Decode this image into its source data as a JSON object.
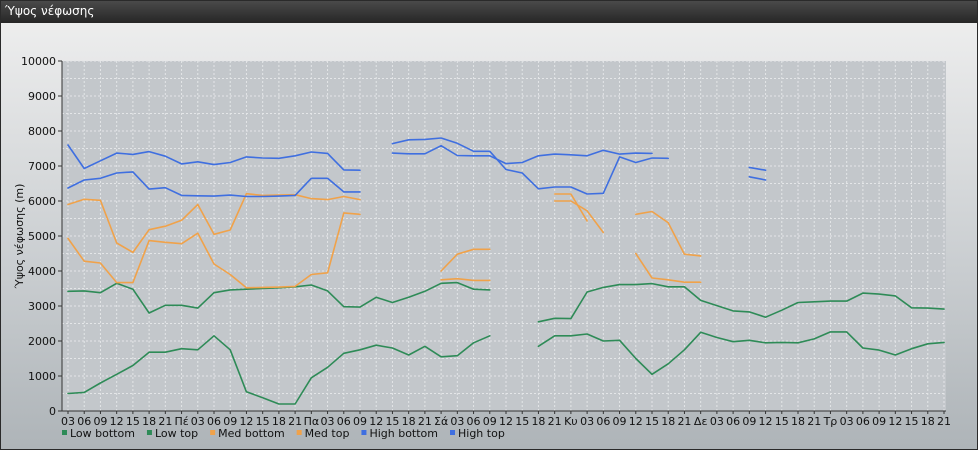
{
  "window": {
    "title": "Ύψος νέφωσης"
  },
  "colors": {
    "low_bottom": "#2e8b57",
    "low_top": "#2e8b57",
    "med_bottom": "#f0a24a",
    "med_top": "#f0a24a",
    "high_bottom": "#3f6fe0",
    "high_top": "#3f6fe0"
  },
  "chart_data": {
    "type": "line",
    "ylabel": "Ύψος νέφωσης (m)",
    "xlabel": "",
    "ylim": [
      0,
      10000
    ],
    "yticks": [
      0,
      1000,
      2000,
      3000,
      4000,
      5000,
      6000,
      7000,
      8000,
      9000,
      10000
    ],
    "grid": true,
    "legend_position": "bottom-left",
    "categories": [
      "03",
      "06",
      "09",
      "12",
      "15",
      "18",
      "21",
      "Πέ",
      "03",
      "06",
      "09",
      "12",
      "15",
      "18",
      "21",
      "Πα",
      "03",
      "06",
      "09",
      "12",
      "15",
      "18",
      "21",
      "Σά",
      "03",
      "06",
      "09",
      "12",
      "15",
      "18",
      "21",
      "Κυ",
      "03",
      "06",
      "09",
      "12",
      "15",
      "18",
      "21",
      "Δε",
      "03",
      "06",
      "09",
      "12",
      "15",
      "18",
      "21",
      "Τρ",
      "03",
      "06",
      "09",
      "12",
      "15",
      "18",
      "21"
    ],
    "series": [
      {
        "name": "Low bottom",
        "color_key": "low_bottom",
        "values": [
          500,
          530,
          800,
          1050,
          1300,
          1680,
          1680,
          1780,
          1750,
          2150,
          1750,
          550,
          380,
          200,
          200,
          950,
          1250,
          1650,
          1750,
          1880,
          1800,
          1600,
          1850,
          1550,
          1580,
          1950,
          2150,
          null,
          null,
          1850,
          2150,
          2150,
          2200,
          2000,
          2020,
          1500,
          1050,
          1350,
          1750,
          2250,
          2100,
          1980,
          2020,
          1950,
          1960,
          1950,
          2060,
          2260,
          2260,
          1800,
          1740,
          1600,
          1780,
          1920,
          1960
        ]
      },
      {
        "name": "Low top",
        "color_key": "low_top",
        "values": [
          3420,
          3430,
          3380,
          3650,
          3480,
          2800,
          3020,
          3020,
          2940,
          3380,
          3460,
          3480,
          3500,
          3520,
          3550,
          3600,
          3430,
          2980,
          2970,
          3250,
          3100,
          3250,
          3420,
          3650,
          3670,
          3480,
          3460,
          null,
          null,
          2550,
          2650,
          2640,
          3400,
          3530,
          3610,
          3610,
          3640,
          3550,
          3550,
          3160,
          3010,
          2860,
          2830,
          2680,
          2880,
          3100,
          3120,
          3140,
          3140,
          3370,
          3340,
          3290,
          2950,
          2940,
          2910
        ]
      },
      {
        "name": "Med bottom",
        "color_key": "med_bottom",
        "values": [
          4930,
          4280,
          4230,
          3670,
          3670,
          4870,
          4820,
          4780,
          5080,
          4200,
          3900,
          3520,
          3530,
          3540,
          3560,
          3900,
          3950,
          5660,
          5620,
          null,
          null,
          null,
          null,
          4000,
          4480,
          4620,
          4620,
          null,
          null,
          null,
          6200,
          6200,
          5430,
          null,
          null,
          4500,
          3800,
          3750,
          3680,
          3680,
          null,
          null,
          null,
          null,
          null,
          null,
          null,
          null,
          null,
          null,
          null,
          null,
          null,
          null,
          null
        ]
      },
      {
        "name": "Med top",
        "color_key": "med_top",
        "values": [
          5900,
          6050,
          6020,
          4800,
          4530,
          5180,
          5280,
          5450,
          5900,
          5050,
          5170,
          6210,
          6160,
          6170,
          6180,
          6070,
          6040,
          6130,
          6040,
          null,
          null,
          null,
          null,
          3750,
          3780,
          3730,
          3730,
          null,
          null,
          null,
          6000,
          6000,
          5720,
          5100,
          null,
          5620,
          5700,
          5380,
          4480,
          4430,
          null,
          null,
          null,
          null,
          null,
          null,
          null,
          null,
          null,
          null,
          null,
          null,
          null,
          null,
          null
        ]
      },
      {
        "name": "High bottom",
        "color_key": "high_bottom",
        "values": [
          6370,
          6600,
          6650,
          6800,
          6830,
          6340,
          6380,
          6160,
          6150,
          6140,
          6170,
          6130,
          6130,
          6140,
          6160,
          6650,
          6650,
          6260,
          6260,
          null,
          null,
          null,
          null,
          null,
          null,
          null,
          null,
          null,
          null,
          null,
          null,
          null,
          null,
          null,
          null,
          null,
          null,
          null,
          null,
          null,
          null,
          null,
          null,
          null,
          null,
          null,
          null,
          null,
          null,
          null,
          null,
          null,
          null,
          null,
          null
        ]
      },
      {
        "name": "High top",
        "color_key": "high_top",
        "values": [
          7600,
          6930,
          7150,
          7370,
          7330,
          7410,
          7280,
          7060,
          7120,
          7040,
          7100,
          7260,
          7230,
          7220,
          7290,
          7400,
          7360,
          6890,
          6880,
          null,
          null,
          null,
          null,
          null,
          null,
          null,
          null,
          null,
          null,
          null,
          null,
          null,
          null,
          null,
          null,
          null,
          null,
          null,
          null,
          null,
          null,
          null,
          null,
          null,
          null,
          null,
          null,
          null,
          null,
          null,
          null,
          null,
          null,
          null,
          null
        ]
      },
      {
        "name": "High bottom",
        "color_key": "high_bottom",
        "values": [
          null,
          null,
          null,
          null,
          null,
          null,
          null,
          null,
          null,
          null,
          null,
          null,
          null,
          null,
          null,
          null,
          null,
          null,
          null,
          null,
          7370,
          7350,
          7350,
          7580,
          7300,
          7290,
          7290,
          7070,
          7100,
          7290,
          7340,
          7320,
          7290,
          7450,
          7340,
          7370,
          7360,
          null,
          null,
          null,
          null,
          null,
          6960,
          6880,
          null,
          null,
          null,
          null,
          null,
          null,
          null,
          null,
          null,
          null,
          null
        ]
      },
      {
        "name": "High top",
        "color_key": "high_top",
        "values": [
          null,
          null,
          null,
          null,
          null,
          null,
          null,
          null,
          null,
          null,
          null,
          null,
          null,
          null,
          null,
          null,
          null,
          null,
          null,
          null,
          7640,
          7750,
          7760,
          7800,
          7650,
          7420,
          7420,
          6900,
          6800,
          6350,
          6400,
          6400,
          6200,
          6220,
          7260,
          7100,
          7230,
          7220,
          null,
          null,
          null,
          null,
          6690,
          6600,
          null,
          null,
          null,
          null,
          null,
          null,
          null,
          null,
          null,
          null,
          null
        ]
      }
    ],
    "legend": [
      {
        "label": "Low bottom",
        "color_key": "low_bottom"
      },
      {
        "label": "Low top",
        "color_key": "low_top"
      },
      {
        "label": "Med bottom",
        "color_key": "med_bottom"
      },
      {
        "label": "Med top",
        "color_key": "med_top"
      },
      {
        "label": "High bottom",
        "color_key": "high_bottom"
      },
      {
        "label": "High top",
        "color_key": "high_top"
      }
    ]
  }
}
